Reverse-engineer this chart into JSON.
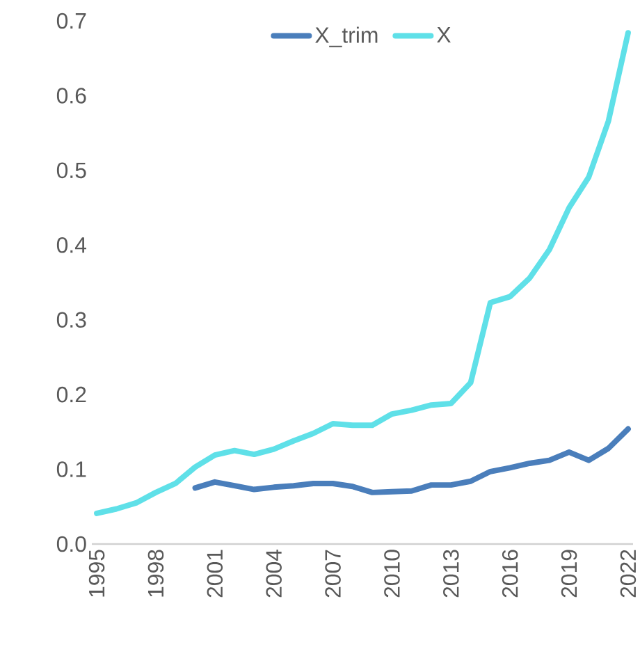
{
  "chart_data": {
    "type": "line",
    "categories": [
      "1995",
      null,
      null,
      "1998",
      null,
      null,
      "2001",
      null,
      null,
      "2004",
      null,
      null,
      "2007",
      null,
      null,
      "2010",
      null,
      null,
      "2013",
      null,
      null,
      "2016",
      null,
      null,
      "2019",
      null,
      null,
      "2022"
    ],
    "series": [
      {
        "name": "X_trim",
        "color": "#4a7ebb",
        "values": [
          null,
          null,
          null,
          null,
          null,
          0.075,
          0.083,
          0.078,
          0.073,
          0.076,
          0.078,
          0.081,
          0.081,
          0.077,
          0.069,
          0.07,
          0.071,
          0.079,
          0.079,
          0.084,
          0.097,
          0.102,
          0.108,
          0.112,
          0.123,
          0.112,
          0.128,
          0.154
        ]
      },
      {
        "name": "X",
        "color": "#5fe0e8",
        "values": [
          0.041,
          0.047,
          0.055,
          0.069,
          0.081,
          0.103,
          0.119,
          0.125,
          0.12,
          0.127,
          0.138,
          0.148,
          0.161,
          0.159,
          0.159,
          0.174,
          0.179,
          0.186,
          0.188,
          0.216,
          0.323,
          0.331,
          0.356,
          0.394,
          0.45,
          0.491,
          0.566,
          0.684
        ]
      }
    ],
    "ylim": [
      0,
      0.7
    ],
    "yticks": [
      {
        "value": 0,
        "label": "0.0"
      },
      {
        "value": 0.1,
        "label": "0.1"
      },
      {
        "value": 0.2,
        "label": "0.2"
      },
      {
        "value": 0.3,
        "label": "0.3"
      },
      {
        "value": 0.4,
        "label": "0.4"
      },
      {
        "value": 0.5,
        "label": "0.5"
      },
      {
        "value": 0.6,
        "label": "0.6"
      },
      {
        "value": 0.7,
        "label": "0.7"
      }
    ],
    "legend": "top",
    "grid": false,
    "marker": "none",
    "line_style": "solid"
  }
}
